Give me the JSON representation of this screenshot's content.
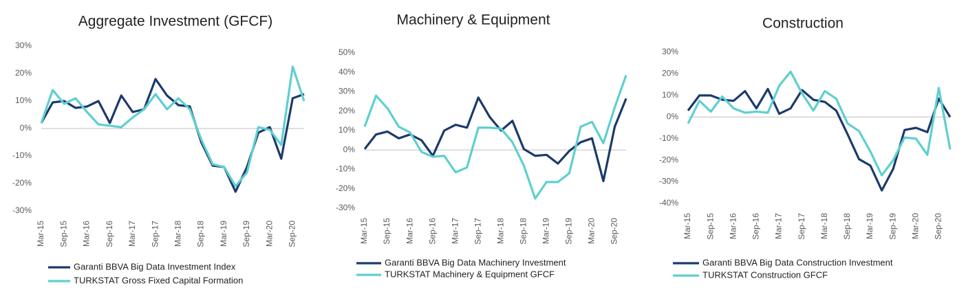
{
  "chart_data": [
    {
      "type": "line",
      "title": "Aggregate Investment (GFCF)",
      "categories": [
        "Mar-15",
        null,
        "Sep-15",
        null,
        "Mar-16",
        null,
        "Sep-16",
        null,
        "Mar-17",
        null,
        "Sep-17",
        null,
        "Mar-18",
        null,
        "Sep-18",
        null,
        "Mar-19",
        null,
        "Sep-19",
        null,
        "Mar-20",
        null,
        "Sep-20",
        null
      ],
      "series": [
        {
          "name": "Garanti BBVA Big Data Investment Index",
          "color": "#1b3a6b",
          "values": [
            2,
            9.5,
            10,
            7.5,
            8,
            10,
            2,
            12,
            6,
            7,
            18,
            12,
            8.5,
            8,
            -5,
            -13.5,
            -14,
            -23,
            -14,
            -1.5,
            0.5,
            -11,
            11,
            12.5
          ]
        },
        {
          "name": "TURKSTAT Gross Fixed Capital Formation",
          "color": "#5ecfcf",
          "values": [
            2,
            14,
            9,
            11,
            6,
            1.5,
            1,
            0.5,
            4,
            7,
            12.5,
            7,
            11,
            7,
            -4,
            -13,
            -14,
            -21,
            -16,
            0.5,
            -0.5,
            -6,
            22.5,
            10
          ]
        }
      ],
      "ylim": [
        -30,
        30
      ],
      "yticks": [
        {
          "value": -30,
          "label": "-30%"
        },
        {
          "value": -20,
          "label": "-20%"
        },
        {
          "value": -10,
          "label": "-10%"
        },
        {
          "value": 0,
          "label": "0%"
        },
        {
          "value": 10,
          "label": "10%"
        },
        {
          "value": 20,
          "label": "20%"
        },
        {
          "value": 30,
          "label": "30%"
        }
      ]
    },
    {
      "type": "line",
      "title": "Machinery & Equipment",
      "categories": [
        "Mar-15",
        null,
        "Sep-15",
        null,
        "Mar-16",
        null,
        "Sep-16",
        null,
        "Mar-17",
        null,
        "Sep-17",
        null,
        "Mar-18",
        null,
        "Sep-18",
        null,
        "Mar-19",
        null,
        "Sep-19",
        null,
        "Mar-20",
        null,
        "Sep-20",
        null
      ],
      "series": [
        {
          "name": "Garanti BBVA Big Data Machinery Investment",
          "color": "#1b3a6b",
          "values": [
            0.5,
            8,
            9.5,
            6,
            8,
            5,
            -3,
            10,
            13,
            11.5,
            27,
            17,
            10,
            15,
            0.5,
            -3,
            -2.5,
            -7,
            -0.5,
            4,
            6,
            -16,
            12,
            26.5
          ]
        },
        {
          "name": "TURKSTAT Machinery & Equipment GFCF",
          "color": "#5ecfcf",
          "values": [
            12,
            28,
            21.5,
            12,
            9,
            -1,
            -3.5,
            -3,
            -11.5,
            -9,
            11.5,
            11.5,
            11,
            4,
            -8,
            -25,
            -16.5,
            -16.5,
            -12,
            12,
            14.5,
            3.5,
            22,
            38.5
          ]
        }
      ],
      "ylim": [
        -30,
        50
      ],
      "yticks": [
        {
          "value": -30,
          "label": "-30%"
        },
        {
          "value": -20,
          "label": "-20%"
        },
        {
          "value": -10,
          "label": "-10%"
        },
        {
          "value": 0,
          "label": "0%"
        },
        {
          "value": 10,
          "label": "10%"
        },
        {
          "value": 20,
          "label": "20%"
        },
        {
          "value": 30,
          "label": "30%"
        },
        {
          "value": 40,
          "label": "40%"
        },
        {
          "value": 50,
          "label": "50%"
        }
      ]
    },
    {
      "type": "line",
      "title": "Construction",
      "categories": [
        "Mar-15",
        null,
        "Sep-15",
        null,
        "Mar-16",
        null,
        "Sep-16",
        null,
        "Mar-17",
        null,
        "Sep-17",
        null,
        "Mar-18",
        null,
        "Sep-18",
        null,
        "Mar-19",
        null,
        "Sep-19",
        null,
        "Mar-20",
        null,
        "Sep-20",
        null
      ],
      "series": [
        {
          "name": "Garanti BBVA Big Data Construction Investment",
          "color": "#1b3a6b",
          "values": [
            3,
            10,
            10,
            8,
            7.5,
            12,
            4,
            13,
            1.5,
            4,
            12.5,
            8,
            7,
            3,
            -8,
            -19.5,
            -22.5,
            -34,
            -24,
            -6,
            -5,
            -7,
            8.5,
            0
          ]
        },
        {
          "name": "TURKSTAT Construction GFCF",
          "color": "#5ecfcf",
          "values": [
            -3,
            7.5,
            2.5,
            9.5,
            4,
            2,
            2.5,
            2,
            14.5,
            21,
            11,
            3,
            12,
            8.5,
            -3,
            -6.5,
            -16,
            -27,
            -20,
            -9.5,
            -10,
            -17.5,
            13.5,
            -15
          ]
        }
      ],
      "ylim": [
        -40,
        30
      ],
      "yticks": [
        {
          "value": -40,
          "label": "-40%"
        },
        {
          "value": -30,
          "label": "-30%"
        },
        {
          "value": -20,
          "label": "-20%"
        },
        {
          "value": -10,
          "label": "-10%"
        },
        {
          "value": 0,
          "label": "0%"
        },
        {
          "value": 10,
          "label": "10%"
        },
        {
          "value": 20,
          "label": "20%"
        },
        {
          "value": 30,
          "label": "30%"
        }
      ]
    }
  ]
}
